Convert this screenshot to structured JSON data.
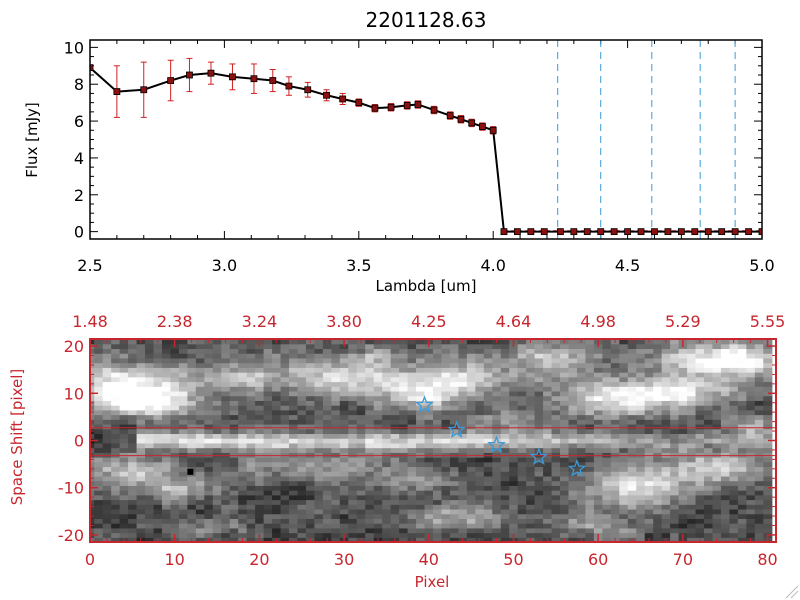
{
  "chart_data": [
    {
      "type": "line",
      "title": "2201128.63",
      "xlabel": "Lambda [um]",
      "ylabel": "Flux [mJy]",
      "xlim": [
        2.5,
        5.0
      ],
      "ylim": [
        -0.4,
        10.4
      ],
      "xticks": [
        "2.5",
        "3.0",
        "3.5",
        "4.0",
        "4.5",
        "5.0"
      ],
      "yticks": [
        "0",
        "2",
        "4",
        "6",
        "8",
        "10"
      ],
      "series": [
        {
          "name": "spectrum",
          "x": [
            2.5,
            2.6,
            2.7,
            2.8,
            2.87,
            2.95,
            3.03,
            3.11,
            3.18,
            3.24,
            3.31,
            3.38,
            3.44,
            3.5,
            3.56,
            3.62,
            3.68,
            3.72,
            3.78,
            3.84,
            3.88,
            3.92,
            3.96,
            4.0,
            4.04,
            4.09,
            4.14,
            4.19,
            4.25,
            4.3,
            4.35,
            4.4,
            4.45,
            4.5,
            4.55,
            4.6,
            4.65,
            4.7,
            4.75,
            4.8,
            4.85,
            4.9,
            4.95,
            5.0
          ],
          "y": [
            8.9,
            7.6,
            7.7,
            8.2,
            8.5,
            8.6,
            8.4,
            8.3,
            8.2,
            7.9,
            7.7,
            7.4,
            7.2,
            7.0,
            6.7,
            6.75,
            6.85,
            6.9,
            6.6,
            6.3,
            6.1,
            5.9,
            5.7,
            5.5,
            0.0,
            0.0,
            0.0,
            0.0,
            0.0,
            0.0,
            0.0,
            0.0,
            0.0,
            0.0,
            0.0,
            0.0,
            0.0,
            0.0,
            0.0,
            0.0,
            0.0,
            0.0,
            0.0,
            0.0
          ],
          "yerr": [
            0,
            1.4,
            1.5,
            1.1,
            0.9,
            0.6,
            0.7,
            0.8,
            0.6,
            0.5,
            0.4,
            0.3,
            0.3,
            0.2,
            0.2,
            0.2,
            0.2,
            0.2,
            0.2,
            0.2,
            0.2,
            0.2,
            0.2,
            0.2,
            0,
            0,
            0,
            0,
            0,
            0,
            0,
            0,
            0,
            0,
            0,
            0,
            0,
            0,
            0,
            0,
            0,
            0,
            0,
            0
          ]
        }
      ],
      "vlines": [
        4.24,
        4.4,
        4.59,
        4.77,
        4.9
      ],
      "colors": {
        "line": "#000000",
        "marker": "#8b1010",
        "error": "#d02020",
        "vline": "#3a9ad8"
      }
    },
    {
      "type": "heatmap",
      "xlabel": "Pixel",
      "ylabel": "Space Shift [pixel]",
      "xlim": [
        0,
        81
      ],
      "ylim": [
        -21.5,
        21.5
      ],
      "xticks": [
        "0",
        "10",
        "20",
        "30",
        "40",
        "50",
        "60",
        "70",
        "80"
      ],
      "yticks": [
        "-20",
        "-10",
        "0",
        "10",
        "20"
      ],
      "top_ticks": [
        "1.48",
        "2.38",
        "3.24",
        "3.80",
        "4.25",
        "4.64",
        "4.98",
        "5.29",
        "5.55"
      ],
      "hlines": [
        2.7,
        -3.2
      ],
      "stars": [
        {
          "x": 39.5,
          "y": 7.5
        },
        {
          "x": 43.3,
          "y": 2.2
        },
        {
          "x": 48.0,
          "y": -1.0
        },
        {
          "x": 53.0,
          "y": -3.5
        },
        {
          "x": 57.5,
          "y": -6.0
        }
      ],
      "colors": {
        "axis": "#c8262e",
        "star": "#3a9ad8"
      }
    }
  ]
}
